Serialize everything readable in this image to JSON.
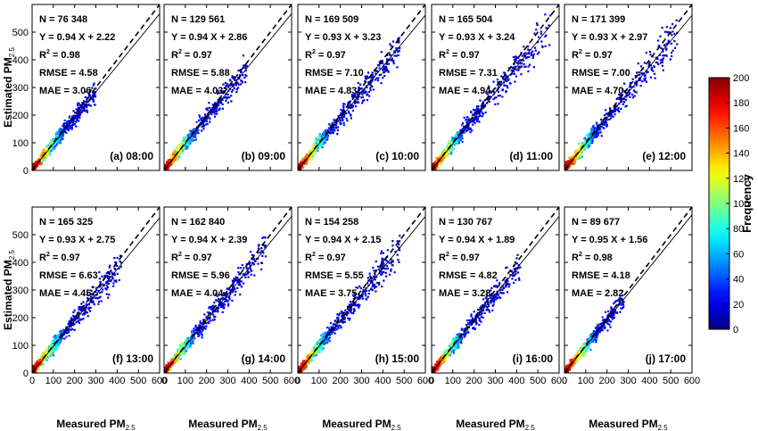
{
  "chart_data": {
    "type": "heatmap",
    "title": "",
    "xlabel": "Measured PM2.5",
    "ylabel": "Estimated PM2.5",
    "xlim": [
      0,
      600
    ],
    "ylim": [
      0,
      600
    ],
    "x_ticks": [
      0,
      100,
      200,
      300,
      400,
      500,
      600
    ],
    "y_ticks": [
      0,
      100,
      200,
      300,
      400,
      500
    ],
    "grid": false,
    "reference_line": {
      "style": "dashed",
      "slope": 1,
      "intercept": 0
    },
    "colorbar": {
      "label": "Frequency",
      "range": [
        0,
        200
      ],
      "ticks": [
        0,
        20,
        40,
        60,
        80,
        100,
        120,
        140,
        160,
        180,
        200
      ],
      "colormap": "jet"
    },
    "panels": [
      {
        "label": "(a) 08:00",
        "n_text": "N = 76 348",
        "fit_text": "Y = 0.94 X + 2.22",
        "r2": "0.98",
        "rmse_text": "RMSE = 4.58",
        "mae_text": "MAE = 3.06",
        "slope": 0.94,
        "intercept": 2.22,
        "spread": 20,
        "maxx": 300
      },
      {
        "label": "(b) 09:00",
        "n_text": "N = 129 561",
        "fit_text": "Y = 0.94 X + 2.86",
        "r2": "0.97",
        "rmse_text": "RMSE = 5.88",
        "mae_text": "MAE = 4.03",
        "slope": 0.94,
        "intercept": 2.86,
        "spread": 24,
        "maxx": 390
      },
      {
        "label": "(c) 10:00",
        "n_text": "N = 169 509",
        "fit_text": "Y = 0.93 X + 3.23",
        "r2": "0.97",
        "rmse_text": "RMSE = 7.10",
        "mae_text": "MAE = 4.83",
        "slope": 0.93,
        "intercept": 3.23,
        "spread": 27,
        "maxx": 480
      },
      {
        "label": "(d) 11:00",
        "n_text": "N = 165 504",
        "fit_text": "Y = 0.93 X + 3.24",
        "r2": "0.97",
        "rmse_text": "RMSE = 7.31",
        "mae_text": "MAE = 4.94",
        "slope": 0.93,
        "intercept": 3.24,
        "spread": 28,
        "maxx": 560
      },
      {
        "label": "(e) 12:00",
        "n_text": "N = 171 399",
        "fit_text": "Y = 0.93 X + 2.97",
        "r2": "0.97",
        "rmse_text": "RMSE = 7.00",
        "mae_text": "MAE = 4.70",
        "slope": 0.93,
        "intercept": 2.97,
        "spread": 27,
        "maxx": 540
      },
      {
        "label": "(f) 13:00",
        "n_text": "N = 165 325",
        "fit_text": "Y = 0.93 X + 2.75",
        "r2": "0.97",
        "rmse_text": "RMSE = 6.63",
        "mae_text": "MAE = 4.45",
        "slope": 0.93,
        "intercept": 2.75,
        "spread": 26,
        "maxx": 420
      },
      {
        "label": "(g) 14:00",
        "n_text": "N = 162 840",
        "fit_text": "Y = 0.94 X + 2.39",
        "r2": "0.97",
        "rmse_text": "RMSE = 5.96",
        "mae_text": "MAE = 4.04",
        "slope": 0.94,
        "intercept": 2.39,
        "spread": 24,
        "maxx": 480
      },
      {
        "label": "(h) 15:00",
        "n_text": "N = 154 258",
        "fit_text": "Y = 0.94 X + 2.15",
        "r2": "0.97",
        "rmse_text": "RMSE = 5.55",
        "mae_text": "MAE = 3.75",
        "slope": 0.94,
        "intercept": 2.15,
        "spread": 23,
        "maxx": 480
      },
      {
        "label": "(i) 16:00",
        "n_text": "N = 130 767",
        "fit_text": "Y = 0.94 X + 1.89",
        "r2": "0.97",
        "rmse_text": "RMSE = 4.82",
        "mae_text": "MAE = 3.28",
        "slope": 0.94,
        "intercept": 1.89,
        "spread": 21,
        "maxx": 420
      },
      {
        "label": "(j) 17:00",
        "n_text": "N = 89 677",
        "fit_text": "Y = 0.95 X + 1.56",
        "r2": "0.98",
        "rmse_text": "RMSE = 4.18",
        "mae_text": "MAE = 2.82",
        "slope": 0.95,
        "intercept": 1.56,
        "spread": 19,
        "maxx": 280
      }
    ]
  }
}
